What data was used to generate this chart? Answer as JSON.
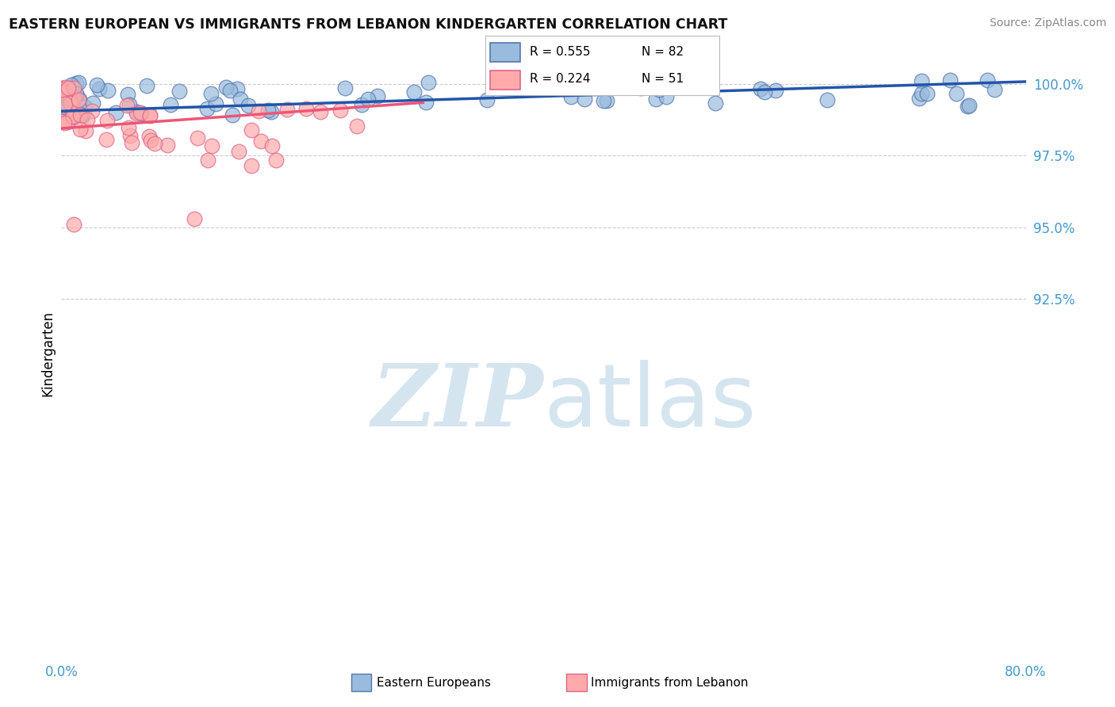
{
  "title": "EASTERN EUROPEAN VS IMMIGRANTS FROM LEBANON KINDERGARTEN CORRELATION CHART",
  "source": "Source: ZipAtlas.com",
  "ylabel": "Kindergarten",
  "ylim": [
    80.0,
    101.2
  ],
  "xlim": [
    0.0,
    80.0
  ],
  "ytick_vals": [
    92.5,
    95.0,
    97.5,
    100.0
  ],
  "ytick_labels": [
    "92.5%",
    "95.0%",
    "97.5%",
    "100.0%"
  ],
  "xtick_vals": [
    0.0,
    80.0
  ],
  "xtick_labels": [
    "0.0%",
    "80.0%"
  ],
  "legend_blue_r": "R = 0.555",
  "legend_blue_n": "N = 82",
  "legend_pink_r": "R = 0.224",
  "legend_pink_n": "N = 51",
  "blue_scatter_color": "#99BBDD",
  "blue_edge_color": "#5577AA",
  "pink_scatter_color": "#FFAAAA",
  "pink_edge_color": "#DD6688",
  "blue_line_color": "#2255AA",
  "pink_line_color": "#EE5577",
  "axis_tick_color": "#4499CC",
  "title_color": "#111111",
  "source_color": "#888888",
  "watermark_color": "#D5E5F0",
  "grid_color": "#CCCCCC",
  "background": "#FFFFFF",
  "blue_trend_x0": 0.0,
  "blue_trend_y0": 99.05,
  "blue_trend_x1": 80.0,
  "blue_trend_y1": 100.08,
  "pink_trend_x0": 0.0,
  "pink_trend_y0": 98.45,
  "pink_trend_x1": 30.0,
  "pink_trend_y1": 99.35
}
